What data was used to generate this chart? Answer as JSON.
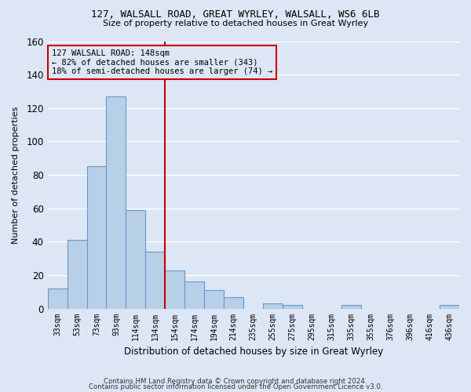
{
  "title1": "127, WALSALL ROAD, GREAT WYRLEY, WALSALL, WS6 6LB",
  "title2": "Size of property relative to detached houses in Great Wyrley",
  "xlabel": "Distribution of detached houses by size in Great Wyrley",
  "ylabel": "Number of detached properties",
  "footer1": "Contains HM Land Registry data © Crown copyright and database right 2024.",
  "footer2": "Contains public sector information licensed under the Open Government Licence v3.0.",
  "categories": [
    "33sqm",
    "53sqm",
    "73sqm",
    "93sqm",
    "114sqm",
    "134sqm",
    "154sqm",
    "174sqm",
    "194sqm",
    "214sqm",
    "235sqm",
    "255sqm",
    "275sqm",
    "295sqm",
    "315sqm",
    "335sqm",
    "355sqm",
    "376sqm",
    "396sqm",
    "416sqm",
    "436sqm"
  ],
  "values": [
    12,
    41,
    85,
    127,
    59,
    34,
    23,
    16,
    11,
    7,
    0,
    3,
    2,
    0,
    0,
    2,
    0,
    0,
    0,
    0,
    2
  ],
  "bar_color": "#b8cfe8",
  "bar_edge_color": "#6699cc",
  "bg_color": "#dce6f5",
  "grid_color": "#ffffff",
  "vline_x": 5.5,
  "vline_color": "#cc0000",
  "annotation_box_text": "127 WALSALL ROAD: 148sqm\n← 82% of detached houses are smaller (343)\n18% of semi-detached houses are larger (74) →",
  "annotation_box_color": "#cc0000",
  "ylim": [
    0,
    160
  ],
  "yticks": [
    0,
    20,
    40,
    60,
    80,
    100,
    120,
    140,
    160
  ]
}
